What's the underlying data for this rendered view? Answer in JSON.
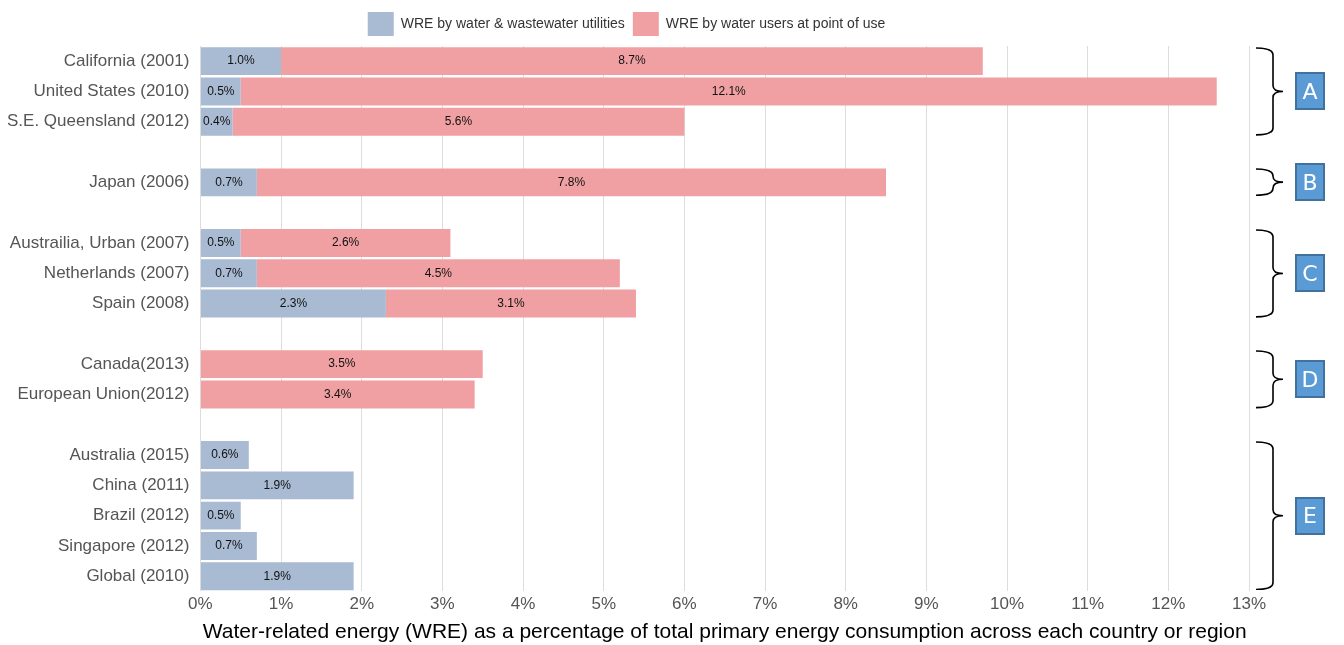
{
  "chart_data": {
    "type": "bar",
    "orientation": "horizontal",
    "stacked": true,
    "xlabel": "Water-related energy (WRE) as a percentage of total primary energy consumption across each country or region",
    "categories": [
      "California (2001)",
      "United States (2010)",
      "S.E. Queensland (2012)",
      null,
      "Japan (2006)",
      null,
      "Austrailia, Urban (2007)",
      "Netherlands (2007)",
      "Spain (2008)",
      null,
      "Canada(2013)",
      "European Union(2012)",
      null,
      "Australia (2015)",
      "China (2011)",
      "Brazil (2012)",
      "Singapore (2012)",
      "Global (2010)"
    ],
    "series": [
      {
        "name": "WRE by water & wastewater utilities",
        "color": "#a9bad3",
        "values": [
          1.0,
          0.5,
          0.4,
          null,
          0.7,
          null,
          0.5,
          0.7,
          2.3,
          null,
          null,
          null,
          null,
          0.6,
          1.9,
          0.5,
          0.7,
          1.9
        ],
        "value_labels": [
          "1.0%",
          "0.5%",
          "0.4%",
          null,
          "0.7%",
          null,
          "0.5%",
          "0.7%",
          "2.3%",
          null,
          null,
          null,
          null,
          "0.6%",
          "1.9%",
          "0.5%",
          "0.7%",
          "1.9%"
        ]
      },
      {
        "name": "WRE by water users at point of use",
        "color": "#f0a0a2",
        "values": [
          8.7,
          12.1,
          5.6,
          null,
          7.8,
          null,
          2.6,
          4.5,
          3.1,
          null,
          3.5,
          3.4,
          null,
          null,
          null,
          null,
          null,
          null
        ],
        "value_labels": [
          "8.7%",
          "12.1%",
          "5.6%",
          null,
          "7.8%",
          null,
          "2.6%",
          "4.5%",
          "3.1%",
          null,
          "3.5%",
          "3.4%",
          null,
          null,
          null,
          null,
          null,
          null
        ]
      }
    ],
    "xlim": [
      0,
      13
    ],
    "xticks": [
      {
        "value": 0,
        "label": "0%"
      },
      {
        "value": 1,
        "label": "1%"
      },
      {
        "value": 2,
        "label": "2%"
      },
      {
        "value": 3,
        "label": "3%"
      },
      {
        "value": 4,
        "label": "4%"
      },
      {
        "value": 5,
        "label": "5%"
      },
      {
        "value": 6,
        "label": "6%"
      },
      {
        "value": 7,
        "label": "7%"
      },
      {
        "value": 8,
        "label": "8%"
      },
      {
        "value": 9,
        "label": "9%"
      },
      {
        "value": 10,
        "label": "10%"
      },
      {
        "value": 11,
        "label": "11%"
      },
      {
        "value": 12,
        "label": "12%"
      },
      {
        "value": 13,
        "label": "13%"
      }
    ],
    "grid": "x",
    "legend": "top",
    "annotations": [
      "A",
      "B",
      "C",
      "D",
      "E"
    ]
  }
}
